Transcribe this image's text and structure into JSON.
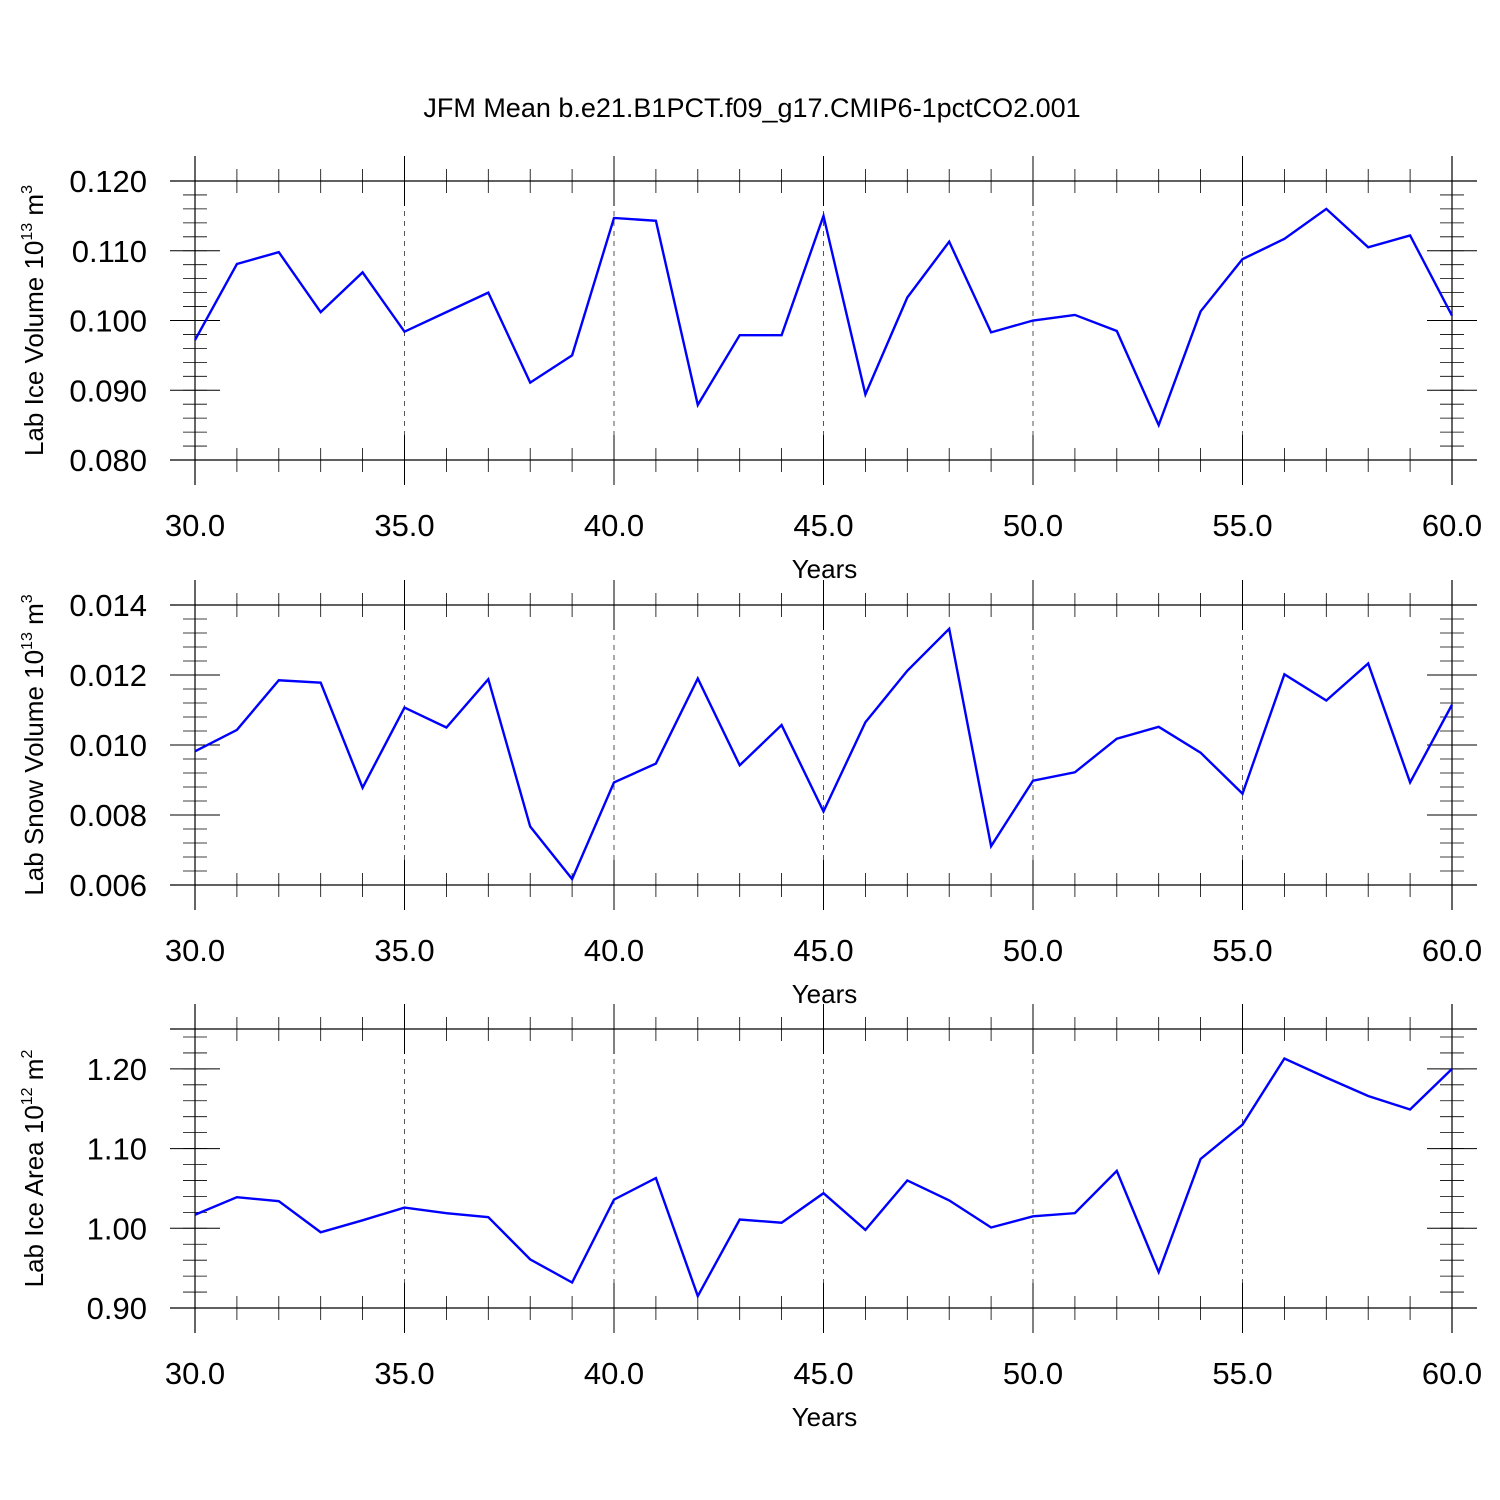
{
  "title": "JFM Mean b.e21.B1PCT.f09_g17.CMIP6-1pctCO2.001",
  "line_color": "#0000ff",
  "chart_data": [
    {
      "type": "line",
      "xlabel": "Years",
      "ylabel": {
        "text": "Lab Ice Volume 10",
        "exp": "13",
        "unit": " m",
        "unit_exp": "3"
      },
      "xlim": [
        30,
        60
      ],
      "ylim": [
        0.08,
        0.12
      ],
      "x_ticks": [
        30,
        35,
        40,
        45,
        50,
        55,
        60
      ],
      "x_tick_labels": [
        "30.0",
        "35.0",
        "40.0",
        "45.0",
        "50.0",
        "55.0",
        "60.0"
      ],
      "y_ticks": [
        0.08,
        0.09,
        0.1,
        0.11,
        0.12
      ],
      "y_tick_labels": [
        "0.080",
        "0.090",
        "0.100",
        "0.110",
        "0.120"
      ],
      "grid": "vertical dashed at major x ticks",
      "x": [
        30,
        31,
        32,
        33,
        34,
        35,
        36,
        37,
        38,
        39,
        40,
        41,
        42,
        43,
        44,
        45,
        46,
        47,
        48,
        49,
        50,
        51,
        52,
        53,
        54,
        55,
        56,
        57,
        58,
        59,
        60
      ],
      "values": [
        0.0972,
        0.1081,
        0.1098,
        0.1012,
        0.1069,
        0.0984,
        0.1012,
        0.104,
        0.0911,
        0.095,
        0.1147,
        0.1143,
        0.0879,
        0.0979,
        0.0979,
        0.115,
        0.0894,
        0.1033,
        0.1113,
        0.0983,
        0.1,
        0.1008,
        0.0985,
        0.085,
        0.1013,
        0.1088,
        0.1117,
        0.116,
        0.1105,
        0.1122,
        0.1007
      ]
    },
    {
      "type": "line",
      "xlabel": "Years",
      "ylabel": {
        "text": "Lab Snow Volume 10",
        "exp": "13",
        "unit": " m",
        "unit_exp": "3"
      },
      "xlim": [
        30,
        60
      ],
      "ylim": [
        0.006,
        0.014
      ],
      "x_ticks": [
        30,
        35,
        40,
        45,
        50,
        55,
        60
      ],
      "x_tick_labels": [
        "30.0",
        "35.0",
        "40.0",
        "45.0",
        "50.0",
        "55.0",
        "60.0"
      ],
      "y_ticks": [
        0.006,
        0.008,
        0.01,
        0.012,
        0.014
      ],
      "y_tick_labels": [
        "0.006",
        "0.008",
        "0.010",
        "0.012",
        "0.014"
      ],
      "grid": "vertical dashed at major x ticks",
      "x": [
        30,
        31,
        32,
        33,
        34,
        35,
        36,
        37,
        38,
        39,
        40,
        41,
        42,
        43,
        44,
        45,
        46,
        47,
        48,
        49,
        50,
        51,
        52,
        53,
        54,
        55,
        56,
        57,
        58,
        59,
        60
      ],
      "values": [
        0.00982,
        0.01043,
        0.01185,
        0.01178,
        0.00878,
        0.01107,
        0.0105,
        0.01188,
        0.00767,
        0.00617,
        0.00893,
        0.00947,
        0.0119,
        0.00942,
        0.01057,
        0.0081,
        0.01065,
        0.01212,
        0.01332,
        0.00711,
        0.00898,
        0.00922,
        0.01018,
        0.01052,
        0.00978,
        0.00861,
        0.01202,
        0.01127,
        0.01233,
        0.00893,
        0.01115
      ]
    },
    {
      "type": "line",
      "xlabel": "Years",
      "ylabel": {
        "text": "Lab Ice Area 10",
        "exp": "12",
        "unit": " m",
        "unit_exp": "2"
      },
      "xlim": [
        30,
        60
      ],
      "ylim": [
        0.9,
        1.25
      ],
      "x_ticks": [
        30,
        35,
        40,
        45,
        50,
        55,
        60
      ],
      "x_tick_labels": [
        "30.0",
        "35.0",
        "40.0",
        "45.0",
        "50.0",
        "55.0",
        "60.0"
      ],
      "y_ticks": [
        0.9,
        1.0,
        1.1,
        1.2
      ],
      "y_tick_labels": [
        "0.90",
        "1.00",
        "1.10",
        "1.20"
      ],
      "grid": "vertical dashed at major x ticks",
      "x": [
        30,
        31,
        32,
        33,
        34,
        35,
        36,
        37,
        38,
        39,
        40,
        41,
        42,
        43,
        44,
        45,
        46,
        47,
        48,
        49,
        50,
        51,
        52,
        53,
        54,
        55,
        56,
        57,
        58,
        59,
        60
      ],
      "values": [
        1.017,
        1.039,
        1.034,
        0.995,
        1.01,
        1.026,
        1.019,
        1.014,
        0.961,
        0.932,
        1.036,
        1.063,
        0.915,
        1.011,
        1.007,
        1.044,
        0.998,
        1.06,
        1.035,
        1.001,
        1.015,
        1.019,
        1.072,
        0.945,
        1.087,
        1.13,
        1.213,
        1.189,
        1.166,
        1.149,
        1.2
      ]
    }
  ]
}
